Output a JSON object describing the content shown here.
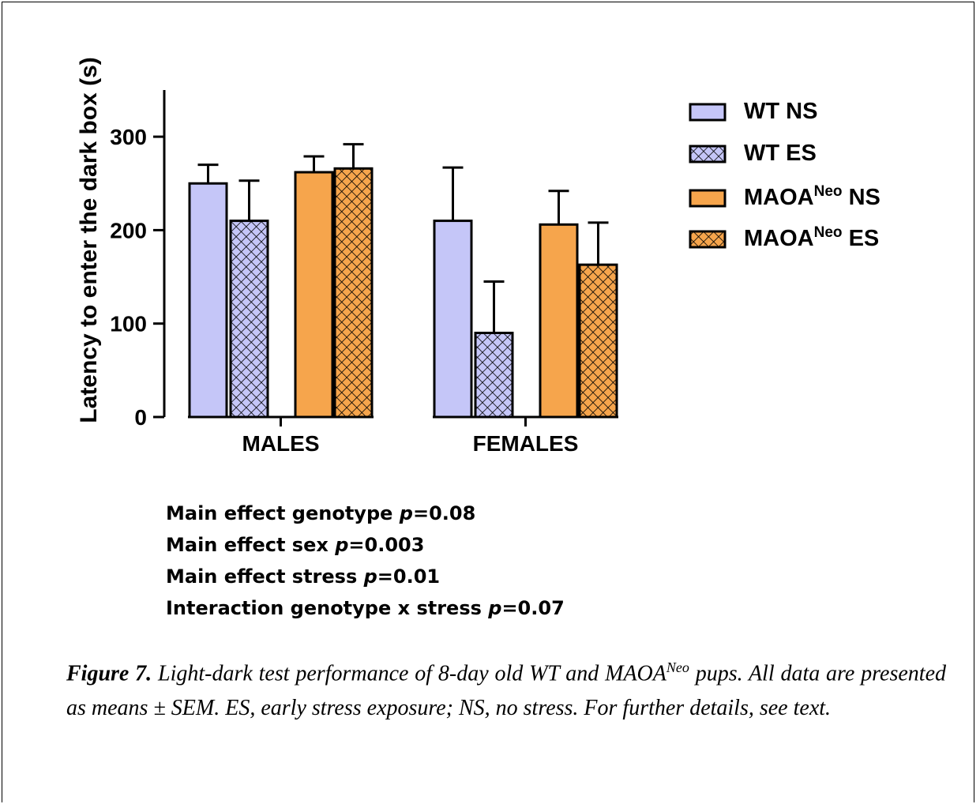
{
  "chart_data": {
    "type": "bar",
    "categories": [
      "MALES",
      "FEMALES"
    ],
    "ylabel": "Latency to enter the dark box (s)",
    "xlabel": "",
    "ylim": [
      0,
      350
    ],
    "yticks": [
      0,
      100,
      200,
      300
    ],
    "grid": false,
    "legend_position": "right",
    "series": [
      {
        "name": "WT NS",
        "color": "#c5c6f8",
        "pattern": "solid",
        "values": [
          250,
          210
        ],
        "errors": [
          20,
          57
        ]
      },
      {
        "name": "WT ES",
        "color": "#c5c6f8",
        "pattern": "crosshatch",
        "values": [
          210,
          90
        ],
        "errors": [
          43,
          55
        ]
      },
      {
        "name": "MAOA^Neo NS",
        "color": "#f6a54c",
        "pattern": "solid",
        "values": [
          262,
          206
        ],
        "errors": [
          17,
          36
        ]
      },
      {
        "name": "MAOA^Neo ES",
        "color": "#f6a54c",
        "pattern": "crosshatch",
        "values": [
          266,
          163
        ],
        "errors": [
          26,
          45
        ]
      }
    ]
  },
  "legend": [
    {
      "main": "WT NS",
      "sup": "",
      "suffix": ""
    },
    {
      "main": "WT ES",
      "sup": "",
      "suffix": ""
    },
    {
      "main": "MAOA",
      "sup": "Neo",
      "suffix": " NS"
    },
    {
      "main": "MAOA",
      "sup": "Neo",
      "suffix": " ES"
    }
  ],
  "stats": [
    {
      "text": "Main effect genotype ",
      "p": "p",
      "value": "=0.08"
    },
    {
      "text": "Main effect sex ",
      "p": "p",
      "value": "=0.003"
    },
    {
      "text": "Main effect stress ",
      "p": "p",
      "value": "=0.01"
    },
    {
      "text": "Interaction genotype x stress ",
      "p": "p",
      "value": "=0.07"
    }
  ],
  "caption": {
    "label": "Figure 7.",
    "text1": " Light-dark test performance of 8-day old WT and MAOA",
    "sup": "Neo",
    "text2": " pups. All data are presented as means ± SEM. ES, early stress exposure; NS, no stress. For further details, see text."
  }
}
